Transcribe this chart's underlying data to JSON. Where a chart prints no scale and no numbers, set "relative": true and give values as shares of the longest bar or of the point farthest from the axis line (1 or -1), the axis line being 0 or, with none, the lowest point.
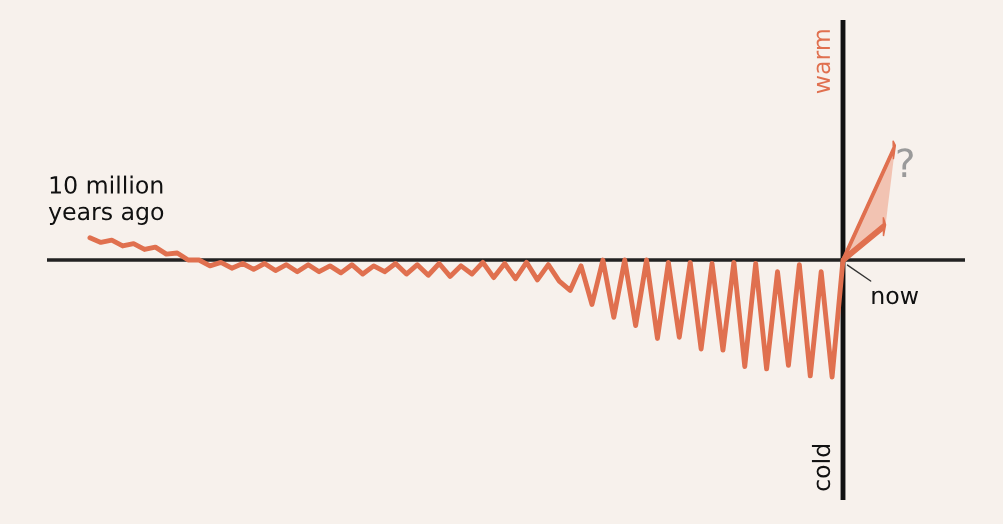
{
  "chart_data": {
    "type": "line",
    "relative": true,
    "categories": [
      null,
      null,
      null,
      null,
      null,
      null,
      null,
      null,
      null,
      null,
      null,
      null,
      null,
      null,
      null,
      null,
      null,
      null,
      null,
      null,
      null,
      null,
      null,
      null,
      null,
      null,
      null,
      null,
      null,
      null,
      null,
      null,
      null,
      null,
      null,
      null,
      null,
      null,
      null,
      null,
      null,
      null,
      null,
      null,
      null,
      null,
      null,
      null,
      null,
      null,
      null,
      null,
      null,
      null,
      null,
      null,
      null,
      null,
      null,
      null,
      null,
      null,
      null,
      null,
      null,
      null,
      null,
      null,
      null,
      null
    ],
    "series": [
      {
        "color": "#e0704f",
        "values": [
          0.19,
          0.15,
          0.17,
          0.12,
          0.14,
          0.09,
          0.11,
          0.05,
          0.06,
          0.0,
          0.0,
          -0.05,
          -0.02,
          -0.07,
          -0.03,
          -0.08,
          -0.03,
          -0.09,
          -0.04,
          -0.1,
          -0.04,
          -0.1,
          -0.05,
          -0.11,
          -0.04,
          -0.12,
          -0.05,
          -0.1,
          -0.03,
          -0.12,
          -0.04,
          -0.13,
          -0.03,
          -0.14,
          -0.05,
          -0.12,
          -0.02,
          -0.15,
          -0.03,
          -0.16,
          -0.02,
          -0.17,
          -0.04,
          -0.18,
          -0.26,
          -0.05,
          -0.38,
          0.0,
          -0.49,
          0.0,
          -0.56,
          0.0,
          -0.67,
          -0.02,
          -0.66,
          -0.02,
          -0.76,
          -0.03,
          -0.77,
          -0.02,
          -0.91,
          -0.03,
          -0.93,
          -0.1,
          -0.9,
          -0.04,
          -0.99,
          -0.1,
          -1.0,
          0.0
        ]
      }
    ],
    "annotations": [
      "10 million\nyears ago",
      "now",
      "?",
      "warm",
      "cold"
    ],
    "grid": false,
    "legend": false,
    "marker": "none",
    "line_style": "solid"
  }
}
